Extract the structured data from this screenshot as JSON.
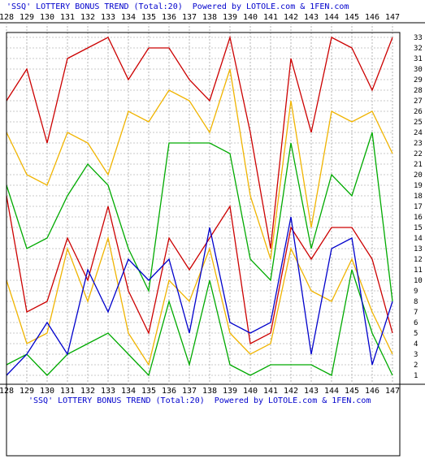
{
  "header": {
    "top_text": "'SSQ' LOTTERY BONUS TREND (Total:20)  Powered by LOTOLE.com & 1FEN.com",
    "bottom_text": "'SSQ' LOTTERY BONUS TREND (Total:20)  Powered by LOTOLE.com & 1FEN.com"
  },
  "chart_data": {
    "type": "line",
    "title": "'SSQ' LOTTERY BONUS TREND (Total:20)",
    "x": [
      128,
      129,
      130,
      131,
      132,
      133,
      134,
      135,
      136,
      137,
      138,
      139,
      140,
      141,
      142,
      143,
      144,
      145,
      146,
      147
    ],
    "ylim": [
      1,
      33
    ],
    "y_ticks": [
      1,
      2,
      3,
      4,
      5,
      6,
      7,
      8,
      9,
      10,
      11,
      12,
      13,
      14,
      15,
      16,
      17,
      18,
      19,
      20,
      21,
      22,
      23,
      24,
      25,
      26,
      27,
      28,
      29,
      30,
      31,
      32,
      33
    ],
    "grid": true,
    "series": [
      {
        "color": "#cc0000",
        "values": [
          27,
          30,
          23,
          31,
          32,
          33,
          29,
          32,
          32,
          29,
          27,
          33,
          24,
          13,
          31,
          24,
          33,
          32,
          28,
          33
        ]
      },
      {
        "color": "#f0b400",
        "values": [
          24,
          20,
          19,
          24,
          23,
          20,
          26,
          25,
          28,
          27,
          24,
          30,
          18,
          12,
          27,
          15,
          26,
          25,
          26,
          22
        ]
      },
      {
        "color": "#00aa00",
        "values": [
          19,
          13,
          14,
          18,
          21,
          19,
          13,
          9,
          23,
          23,
          23,
          22,
          12,
          10,
          23,
          13,
          20,
          18,
          24,
          8
        ]
      },
      {
        "color": "#cc0000",
        "values": [
          18,
          7,
          8,
          14,
          10,
          17,
          9,
          5,
          14,
          11,
          14,
          17,
          4,
          5,
          15,
          12,
          15,
          15,
          12,
          5
        ]
      },
      {
        "color": "#f0b400",
        "values": [
          10,
          4,
          5,
          13,
          8,
          14,
          5,
          2,
          10,
          8,
          13,
          5,
          3,
          4,
          13,
          9,
          8,
          12,
          7,
          3
        ]
      },
      {
        "color": "#00aa00",
        "values": [
          2,
          3,
          1,
          3,
          4,
          5,
          3,
          1,
          8,
          2,
          10,
          2,
          1,
          2,
          2,
          2,
          1,
          11,
          5,
          1
        ]
      },
      {
        "color": "#0000cc",
        "values": [
          1,
          3,
          6,
          3,
          11,
          7,
          12,
          10,
          12,
          5,
          15,
          6,
          5,
          6,
          16,
          3,
          13,
          14,
          2,
          8
        ]
      }
    ]
  }
}
